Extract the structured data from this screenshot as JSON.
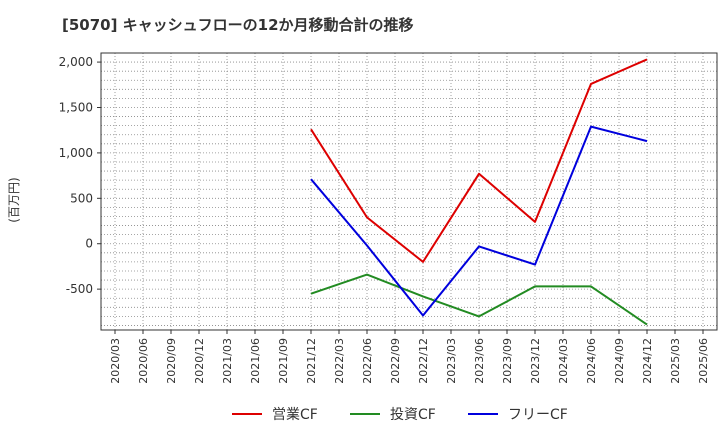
{
  "chart_data": {
    "type": "line",
    "title": "[5070]  キャッシュフローの12か月移動合計の推移",
    "ylabel": "(百万円)",
    "xlabel": "",
    "ylim": [
      -950,
      2100
    ],
    "yticks": [
      2000,
      1500,
      1000,
      500,
      0,
      -500
    ],
    "ytick_labels": [
      "2,000",
      "1,500",
      "1,000",
      "500",
      "0",
      "-500"
    ],
    "x": [
      "2020/03",
      "2020/06",
      "2020/09",
      "2020/12",
      "2021/03",
      "2021/06",
      "2021/09",
      "2021/12",
      "2022/03",
      "2022/06",
      "2022/09",
      "2022/12",
      "2023/03",
      "2023/06",
      "2023/09",
      "2023/12",
      "2024/03",
      "2024/06",
      "2024/09",
      "2024/12",
      "2025/03",
      "2025/06"
    ],
    "grid": true,
    "legend_position": "bottom",
    "series": [
      {
        "name": "営業CF",
        "color": "#dd0000",
        "points": [
          [
            "2021/12",
            1260
          ],
          [
            "2022/06",
            290
          ],
          [
            "2022/12",
            -200
          ],
          [
            "2023/06",
            770
          ],
          [
            "2023/12",
            240
          ],
          [
            "2024/06",
            1760
          ],
          [
            "2024/12",
            2030
          ]
        ]
      },
      {
        "name": "投資CF",
        "color": "#228b22",
        "points": [
          [
            "2021/12",
            -550
          ],
          [
            "2022/06",
            -340
          ],
          [
            "2022/12",
            -580
          ],
          [
            "2023/06",
            -800
          ],
          [
            "2023/12",
            -470
          ],
          [
            "2024/06",
            -470
          ],
          [
            "2024/12",
            -890
          ]
        ]
      },
      {
        "name": "フリーCF",
        "color": "#0000dd",
        "points": [
          [
            "2021/12",
            710
          ],
          [
            "2022/06",
            -20
          ],
          [
            "2022/12",
            -790
          ],
          [
            "2023/06",
            -30
          ],
          [
            "2023/12",
            -230
          ],
          [
            "2024/06",
            1290
          ],
          [
            "2024/12",
            1130
          ]
        ]
      }
    ]
  }
}
